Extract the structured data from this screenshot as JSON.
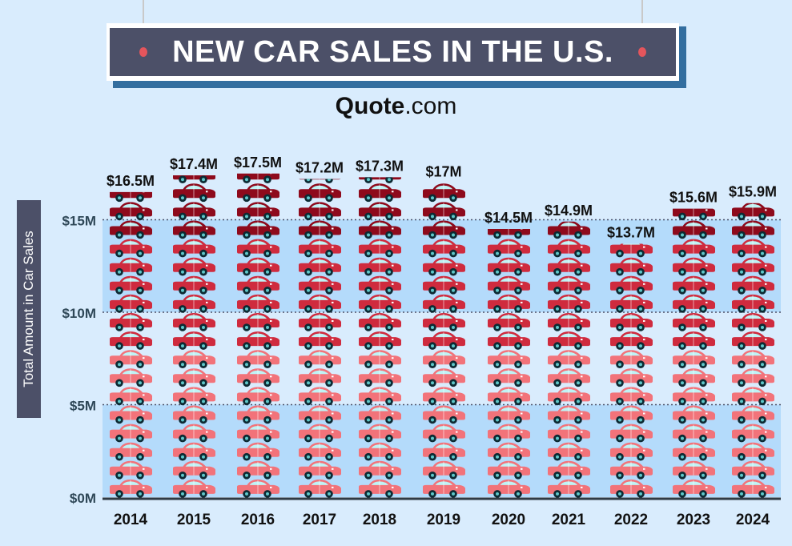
{
  "title": "NEW CAR SALES IN THE U.S.",
  "brand": {
    "bold": "Quote",
    "rest": ".com"
  },
  "colors": {
    "background": "#d9ecfd",
    "band": "#b4dbfb",
    "title_bg": "#4c5068",
    "accent": "#336e9f",
    "car_light": "#f2737a",
    "car_mid": "#cf2b3e",
    "car_dark": "#8e0a1c"
  },
  "chart_data": {
    "type": "bar",
    "title": "NEW CAR SALES IN THE U.S.",
    "ylabel": "Total Amount in Car Sales",
    "xlabel": "",
    "categories": [
      "2014",
      "2015",
      "2016",
      "2017",
      "2018",
      "2019",
      "2020",
      "2021",
      "2022",
      "2023",
      "2024"
    ],
    "values": [
      16.5,
      17.4,
      17.5,
      17.2,
      17.3,
      17,
      14.5,
      14.9,
      13.7,
      15.6,
      15.9
    ],
    "data_labels": [
      "$16.5M",
      "$17.4M",
      "$17.5M",
      "$17.2M",
      "$17.3M",
      "$17M",
      "$14.5M",
      "$14.9M",
      "$13.7M",
      "$15.6M",
      "$15.9M"
    ],
    "yticks": [
      0,
      5,
      10,
      15
    ],
    "ytick_labels": [
      "$0M",
      "$5M",
      "$10M",
      "$15M"
    ],
    "ylim": [
      0,
      15
    ],
    "unit": "million",
    "grid": "alternating shaded bands with dotted lines",
    "mark": "stacked car icons"
  }
}
